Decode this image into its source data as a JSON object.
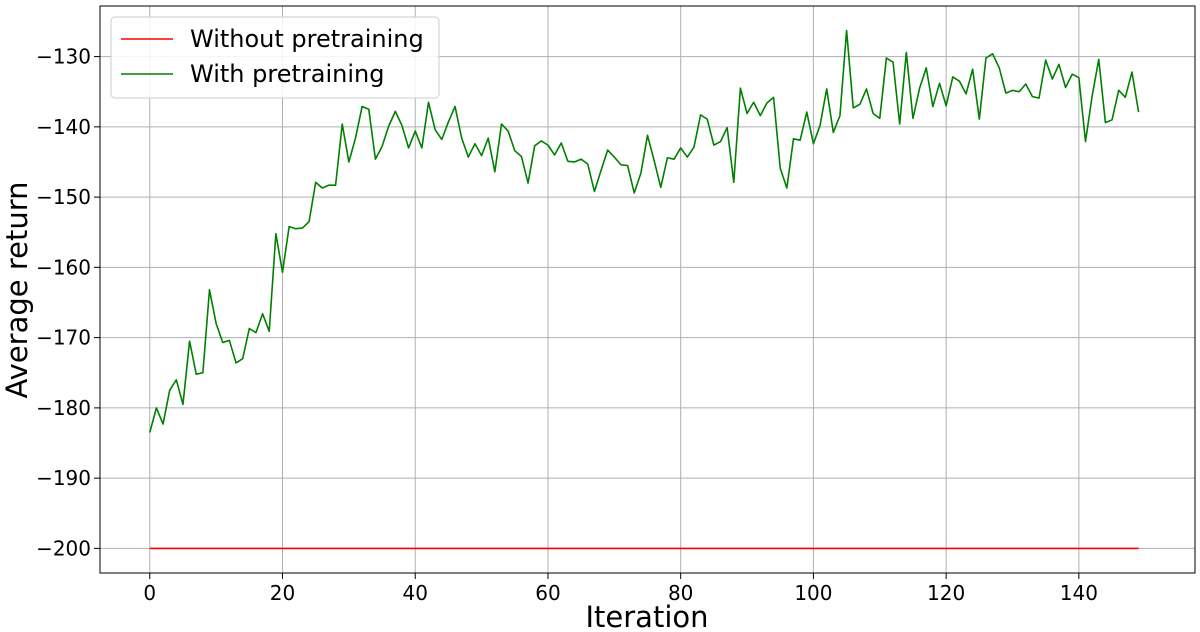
{
  "chart_data": {
    "type": "line",
    "xlabel": "Iteration",
    "ylabel": "Average return",
    "xlim": [
      -7.5,
      157.5
    ],
    "ylim": [
      -203.5,
      -122.8
    ],
    "xticks": [
      0,
      20,
      40,
      60,
      80,
      100,
      120,
      140
    ],
    "yticks": [
      -200,
      -190,
      -180,
      -170,
      -160,
      -150,
      -140,
      -130
    ],
    "grid": true,
    "legend": "top-left",
    "series": [
      {
        "name": "Without pretraining",
        "color": "#ff0000",
        "x": [
          0,
          149
        ],
        "y": [
          -200,
          -200
        ]
      },
      {
        "name": "With pretraining",
        "color": "#008000",
        "y": [
          -183.5,
          -180,
          -182.3,
          -177.5,
          -176,
          -179.5,
          -170.5,
          -175.2,
          -175,
          -163.2,
          -168,
          -170.7,
          -170.4,
          -173.6,
          -173,
          -168.7,
          -169.3,
          -166.6,
          -169.1,
          -155.2,
          -160.7,
          -154.2,
          -154.5,
          -154.4,
          -153.5,
          -147.9,
          -148.7,
          -148.3,
          -148.3,
          -139.6,
          -145,
          -141.6,
          -137.1,
          -137.5,
          -144.6,
          -142.8,
          -139.9,
          -137.8,
          -139.8,
          -143,
          -140.6,
          -143,
          -136.5,
          -140.4,
          -141.8,
          -139.3,
          -137.1,
          -141.6,
          -144.3,
          -142.4,
          -144.1,
          -141.6,
          -146.4,
          -139.6,
          -140.6,
          -143.4,
          -144.2,
          -148,
          -142.7,
          -142,
          -142.6,
          -144,
          -142.3,
          -144.9,
          -145,
          -144.6,
          -145.3,
          -149.2,
          -146.2,
          -143.3,
          -144.3,
          -145.4,
          -145.5,
          -149.4,
          -146.6,
          -141.2,
          -144.8,
          -148.6,
          -144.4,
          -144.6,
          -143,
          -144.3,
          -142.9,
          -138.3,
          -138.9,
          -142.6,
          -142.1,
          -140.1,
          -147.9,
          -134.5,
          -138.1,
          -136.5,
          -138.4,
          -136.6,
          -135.8,
          -145.9,
          -148.7,
          -141.7,
          -141.9,
          -137.9,
          -142.4,
          -139.8,
          -134.6,
          -140.8,
          -138.4,
          -126.3,
          -137.3,
          -136.8,
          -134.6,
          -138.1,
          -138.8,
          -130.2,
          -130.8,
          -139.6,
          -129.4,
          -138.8,
          -134.5,
          -131.6,
          -137.1,
          -133.8,
          -137,
          -132.9,
          -133.5,
          -135.3,
          -131.8,
          -138.9,
          -130.2,
          -129.6,
          -131.6,
          -135.2,
          -134.8,
          -135,
          -133.9,
          -135.7,
          -135.9,
          -130.5,
          -133.2,
          -131.1,
          -134.4,
          -132.5,
          -133,
          -142.1,
          -135.6,
          -130.4,
          -139.4,
          -139,
          -134.8,
          -135.8,
          -132.2,
          -137.9
        ]
      }
    ]
  }
}
